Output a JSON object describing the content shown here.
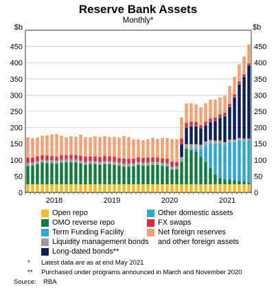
{
  "chart_data": {
    "type": "bar",
    "stacked": true,
    "title": "Reserve Bank Assets",
    "subtitle": "Monthly*",
    "unit_left": "$b",
    "unit_right": "$b",
    "ylim": [
      0,
      500
    ],
    "yticks": [
      "0",
      "50",
      "100",
      "150",
      "200",
      "250",
      "300",
      "350",
      "400",
      "450"
    ],
    "year_labels": [
      {
        "label": "2018",
        "at_month_index": 6
      },
      {
        "label": "2019",
        "at_month_index": 18
      },
      {
        "label": "2020",
        "at_month_index": 30
      },
      {
        "label": "2021",
        "at_month_index": 42
      }
    ],
    "grid": true,
    "legend_position": "bottom",
    "categories": [
      "Jul 2017",
      "Aug 2017",
      "Sep 2017",
      "Oct 2017",
      "Nov 2017",
      "Dec 2017",
      "Jan 2018",
      "Feb 2018",
      "Mar 2018",
      "Apr 2018",
      "May 2018",
      "Jun 2018",
      "Jul 2018",
      "Aug 2018",
      "Sep 2018",
      "Oct 2018",
      "Nov 2018",
      "Dec 2018",
      "Jan 2019",
      "Feb 2019",
      "Mar 2019",
      "Apr 2019",
      "May 2019",
      "Jun 2019",
      "Jul 2019",
      "Aug 2019",
      "Sep 2019",
      "Oct 2019",
      "Nov 2019",
      "Dec 2019",
      "Jan 2020",
      "Feb 2020",
      "Mar 2020",
      "Apr 2020",
      "May 2020",
      "Jun 2020",
      "Jul 2020",
      "Aug 2020",
      "Sep 2020",
      "Oct 2020",
      "Nov 2020",
      "Dec 2020",
      "Jan 2021",
      "Feb 2021",
      "Mar 2021",
      "Apr 2021",
      "May 2021"
    ],
    "series": [
      {
        "name": "Open repo",
        "color": "#f5bd1f",
        "values": [
          25,
          25,
          25,
          25,
          25,
          25,
          25,
          25,
          25,
          25,
          25,
          25,
          25,
          25,
          25,
          25,
          25,
          25,
          25,
          25,
          25,
          25,
          25,
          25,
          25,
          25,
          25,
          25,
          25,
          25,
          25,
          25,
          25,
          25,
          25,
          25,
          25,
          25,
          25,
          25,
          25,
          25,
          25,
          25,
          25,
          25,
          25
        ]
      },
      {
        "name": "OMO reverse repo",
        "color": "#117c3e",
        "values": [
          57,
          58,
          62,
          67,
          65,
          65,
          64,
          67,
          68,
          68,
          68,
          64,
          60,
          63,
          62,
          60,
          62,
          62,
          60,
          58,
          55,
          55,
          56,
          60,
          58,
          58,
          60,
          60,
          57,
          56,
          45,
          46,
          70,
          110,
          105,
          100,
          85,
          70,
          50,
          30,
          20,
          15,
          15,
          12,
          10,
          8,
          5
        ]
      },
      {
        "name": "Term Funding Facility",
        "color": "#2aa8d8",
        "values": [
          0,
          0,
          0,
          0,
          0,
          0,
          0,
          0,
          0,
          0,
          0,
          0,
          0,
          0,
          0,
          0,
          0,
          0,
          0,
          0,
          0,
          0,
          0,
          0,
          0,
          0,
          0,
          0,
          0,
          0,
          0,
          0,
          0,
          0,
          5,
          10,
          25,
          50,
          75,
          95,
          105,
          105,
          115,
          118,
          125,
          125,
          130
        ]
      },
      {
        "name": "Liquidity management bonds",
        "color": "#9c9c9c",
        "values": [
          8,
          8,
          8,
          8,
          8,
          8,
          8,
          8,
          8,
          8,
          8,
          8,
          8,
          8,
          8,
          8,
          8,
          8,
          8,
          8,
          8,
          8,
          8,
          8,
          8,
          8,
          8,
          8,
          8,
          8,
          8,
          8,
          14,
          14,
          14,
          14,
          12,
          12,
          12,
          10,
          10,
          10,
          8,
          8,
          8,
          8,
          6
        ]
      },
      {
        "name": "Long-dated bonds**",
        "color": "#0b1f5c",
        "values": [
          0,
          0,
          0,
          0,
          0,
          0,
          0,
          0,
          0,
          0,
          0,
          0,
          0,
          0,
          0,
          0,
          0,
          0,
          0,
          0,
          0,
          0,
          0,
          0,
          0,
          0,
          0,
          0,
          0,
          0,
          0,
          0,
          40,
          50,
          55,
          55,
          50,
          50,
          55,
          60,
          70,
          80,
          100,
          130,
          165,
          190,
          225
        ]
      },
      {
        "name": "Other domestic assets",
        "color": "#1fb3c4",
        "values": [
          1,
          1,
          1,
          1,
          1,
          1,
          1,
          1,
          1,
          1,
          1,
          1,
          1,
          1,
          1,
          1,
          1,
          1,
          1,
          1,
          1,
          1,
          1,
          1,
          1,
          1,
          1,
          1,
          1,
          1,
          1,
          1,
          1,
          1,
          1,
          1,
          1,
          1,
          1,
          1,
          1,
          1,
          1,
          1,
          1,
          1,
          1
        ]
      },
      {
        "name": "FX swaps",
        "color": "#e3293b",
        "values": [
          16,
          15,
          15,
          14,
          15,
          13,
          12,
          14,
          13,
          14,
          13,
          15,
          16,
          14,
          15,
          15,
          16,
          15,
          16,
          14,
          15,
          15,
          14,
          14,
          14,
          15,
          14,
          13,
          14,
          14,
          16,
          14,
          16,
          14,
          13,
          12,
          10,
          10,
          10,
          10,
          10,
          10,
          9,
          8,
          8,
          7,
          6
        ]
      },
      {
        "name": "Net foreign reserves and other foreign assets",
        "color": "#f4a072",
        "values": [
          63,
          60,
          59,
          60,
          62,
          67,
          70,
          60,
          55,
          57,
          57,
          65,
          60,
          59,
          62,
          62,
          61,
          60,
          61,
          63,
          70,
          67,
          60,
          55,
          55,
          57,
          60,
          58,
          63,
          64,
          70,
          70,
          65,
          60,
          57,
          55,
          55,
          57,
          58,
          55,
          52,
          52,
          55,
          55,
          53,
          55,
          58
        ]
      }
    ]
  },
  "legend": {
    "open_repo": "Open repo",
    "omo": "OMO reverse repo",
    "tff": "Term Funding Facility",
    "lmb": "Liquidity management bonds",
    "ldb": "Long-dated bonds**",
    "oda": "Other domestic assets",
    "fx": "FX swaps",
    "nfr_line1": "Net foreign reserves",
    "nfr_line2": "and other foreign assets"
  },
  "notes": {
    "note1_mark": "*",
    "note1_text": "Latest data are as at end May 2021",
    "note2_mark": "**",
    "note2_text": "Purchased under programs announced in March and November 2020",
    "source_label": "Source:",
    "source_text": "RBA"
  }
}
